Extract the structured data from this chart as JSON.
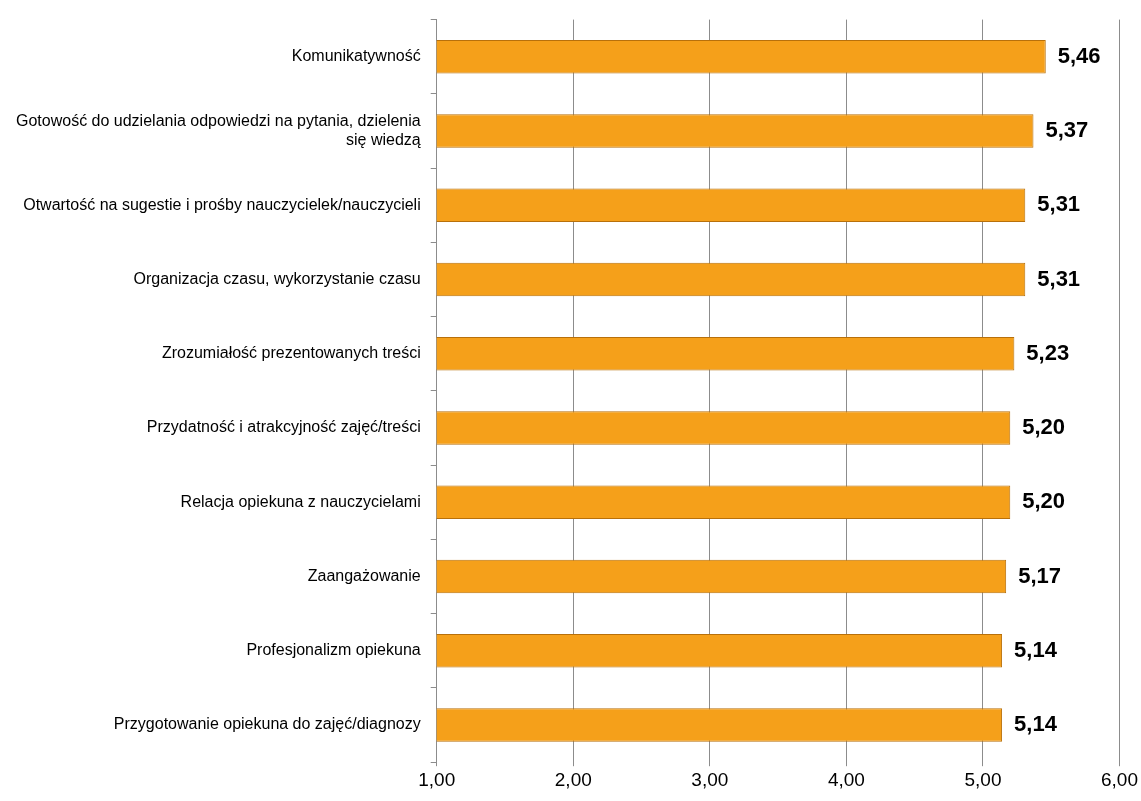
{
  "chart_data": {
    "type": "bar",
    "orientation": "horizontal",
    "categories": [
      "Komunikatywność",
      "Gotowość do udzielania odpowiedzi na pytania, dzielenia się wiedzą",
      "Otwartość na sugestie i prośby nauczycielek/nauczycieli",
      "Organizacja czasu, wykorzystanie czasu",
      "Zrozumiałość prezentowanych treści",
      "Przydatność i atrakcyjność zajęć/treści",
      "Relacja opiekuna z nauczycielami",
      "Zaangażowanie",
      "Profesjonalizm opiekuna",
      "Przygotowanie opiekuna do zajęć/diagnozy"
    ],
    "values": [
      5.46,
      5.37,
      5.31,
      5.31,
      5.23,
      5.2,
      5.2,
      5.17,
      5.14,
      5.14
    ],
    "value_labels": [
      "5,46",
      "5,37",
      "5,31",
      "5,31",
      "5,23",
      "5,20",
      "5,20",
      "5,17",
      "5,14",
      "5,14"
    ],
    "color": "#f5a01a",
    "xlim": [
      1,
      6
    ],
    "xticks": [
      {
        "value": 1,
        "label": "1,00"
      },
      {
        "value": 2,
        "label": "2,00"
      },
      {
        "value": 3,
        "label": "3,00"
      },
      {
        "value": 4,
        "label": "4,00"
      },
      {
        "value": 5,
        "label": "5,00"
      },
      {
        "value": 6,
        "label": "6,00"
      }
    ],
    "grid": "x",
    "legend": false
  }
}
